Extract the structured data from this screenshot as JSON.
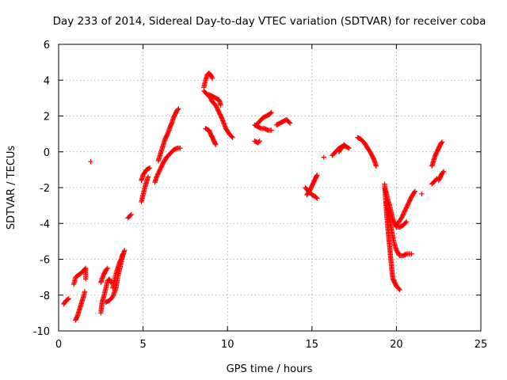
{
  "chart_data": {
    "type": "scatter",
    "title": "Day 233 of 2014, Sidereal Day-to-day VTEC variation (SDTVAR) for receiver coba",
    "xlabel": "GPS time / hours",
    "ylabel": "SDTVAR / TECUs",
    "xlim": [
      0,
      25
    ],
    "ylim": [
      -10,
      6
    ],
    "xticks": [
      0,
      5,
      10,
      15,
      20,
      25
    ],
    "yticks": [
      -10,
      -8,
      -6,
      -4,
      -2,
      0,
      2,
      4,
      6
    ],
    "grid": true,
    "marker": "+",
    "color": "#ff0000",
    "series": [
      {
        "name": "arc-1",
        "points": [
          [
            0.3,
            -8.5
          ],
          [
            0.45,
            -8.3
          ],
          [
            0.6,
            -8.2
          ]
        ]
      },
      {
        "name": "arc-2",
        "points": [
          [
            0.9,
            -7.4
          ],
          [
            1.0,
            -7.0
          ],
          [
            1.15,
            -6.9
          ],
          [
            1.3,
            -6.8
          ],
          [
            1.5,
            -6.6
          ],
          [
            1.6,
            -6.5
          ],
          [
            1.6,
            -7.1
          ]
        ]
      },
      {
        "name": "arc-3",
        "points": [
          [
            1.0,
            -9.4
          ],
          [
            1.1,
            -9.2
          ],
          [
            1.2,
            -8.9
          ],
          [
            1.3,
            -8.6
          ],
          [
            1.4,
            -8.3
          ],
          [
            1.5,
            -8.0
          ],
          [
            1.55,
            -7.8
          ]
        ]
      },
      {
        "name": "outlier-1",
        "points": [
          [
            1.9,
            -0.55
          ]
        ]
      },
      {
        "name": "arc-4",
        "points": [
          [
            2.5,
            -7.3
          ],
          [
            2.6,
            -7.0
          ],
          [
            2.7,
            -6.8
          ],
          [
            2.8,
            -6.6
          ],
          [
            2.9,
            -6.5
          ]
        ]
      },
      {
        "name": "arc-5",
        "points": [
          [
            2.5,
            -9.0
          ],
          [
            2.55,
            -8.6
          ],
          [
            2.6,
            -8.3
          ],
          [
            2.7,
            -8.0
          ],
          [
            2.8,
            -7.6
          ],
          [
            2.9,
            -7.2
          ],
          [
            3.0,
            -7.1
          ],
          [
            3.1,
            -7.3
          ]
        ]
      },
      {
        "name": "arc-6",
        "points": [
          [
            2.8,
            -8.4
          ],
          [
            3.0,
            -8.3
          ],
          [
            3.2,
            -8.1
          ],
          [
            3.4,
            -7.6
          ],
          [
            3.5,
            -7.0
          ],
          [
            3.6,
            -6.6
          ],
          [
            3.7,
            -6.2
          ],
          [
            3.8,
            -5.8
          ],
          [
            3.9,
            -5.5
          ]
        ]
      },
      {
        "name": "arc-7",
        "points": [
          [
            3.2,
            -7.6
          ],
          [
            3.3,
            -7.2
          ],
          [
            3.4,
            -6.8
          ],
          [
            3.5,
            -6.5
          ],
          [
            3.6,
            -6.2
          ],
          [
            3.7,
            -6.0
          ],
          [
            3.8,
            -5.7
          ]
        ]
      },
      {
        "name": "arc-8",
        "points": [
          [
            4.1,
            -3.7
          ],
          [
            4.2,
            -3.6
          ],
          [
            4.3,
            -3.5
          ]
        ]
      },
      {
        "name": "arc-9",
        "points": [
          [
            4.9,
            -2.8
          ],
          [
            5.0,
            -2.4
          ],
          [
            5.1,
            -2.0
          ],
          [
            5.2,
            -1.7
          ],
          [
            5.3,
            -1.4
          ]
        ]
      },
      {
        "name": "arc-10",
        "points": [
          [
            4.9,
            -1.6
          ],
          [
            5.0,
            -1.3
          ],
          [
            5.2,
            -1.0
          ],
          [
            5.4,
            -0.9
          ]
        ]
      },
      {
        "name": "arc-11",
        "points": [
          [
            5.7,
            -1.7
          ],
          [
            5.8,
            -1.4
          ],
          [
            6.0,
            -1.0
          ],
          [
            6.2,
            -0.6
          ],
          [
            6.4,
            -0.3
          ],
          [
            6.6,
            -0.1
          ],
          [
            6.8,
            0.1
          ],
          [
            7.0,
            0.2
          ],
          [
            7.2,
            0.2
          ]
        ]
      },
      {
        "name": "arc-12",
        "points": [
          [
            5.9,
            -0.5
          ],
          [
            6.0,
            -0.2
          ],
          [
            6.1,
            0.1
          ],
          [
            6.2,
            0.4
          ],
          [
            6.3,
            0.7
          ],
          [
            6.4,
            0.9
          ],
          [
            6.5,
            1.1
          ],
          [
            6.6,
            1.4
          ],
          [
            6.7,
            1.6
          ],
          [
            6.8,
            1.9
          ],
          [
            6.9,
            2.1
          ],
          [
            7.0,
            2.3
          ],
          [
            7.1,
            2.4
          ]
        ]
      },
      {
        "name": "arc-13",
        "points": [
          [
            8.6,
            3.6
          ],
          [
            8.7,
            4.0
          ],
          [
            8.8,
            4.3
          ],
          [
            8.9,
            4.4
          ],
          [
            9.0,
            4.3
          ],
          [
            9.1,
            4.1
          ]
        ]
      },
      {
        "name": "arc-14",
        "points": [
          [
            8.6,
            3.4
          ],
          [
            8.8,
            3.2
          ],
          [
            9.0,
            3.0
          ],
          [
            9.1,
            2.8
          ],
          [
            9.3,
            2.6
          ],
          [
            9.5,
            2.2
          ],
          [
            9.7,
            1.8
          ],
          [
            9.9,
            1.3
          ],
          [
            10.1,
            1.0
          ],
          [
            10.3,
            0.8
          ]
        ]
      },
      {
        "name": "arc-15",
        "points": [
          [
            8.9,
            3.2
          ],
          [
            9.1,
            3.1
          ],
          [
            9.3,
            3.0
          ],
          [
            9.5,
            2.9
          ],
          [
            9.6,
            2.6
          ]
        ]
      },
      {
        "name": "arc-16",
        "points": [
          [
            8.7,
            1.3
          ],
          [
            8.9,
            1.2
          ],
          [
            9.0,
            1.0
          ],
          [
            9.1,
            0.8
          ],
          [
            9.2,
            0.6
          ],
          [
            9.3,
            0.4
          ]
        ]
      },
      {
        "name": "arc-17",
        "points": [
          [
            11.6,
            1.5
          ],
          [
            11.8,
            1.4
          ],
          [
            12.0,
            1.3
          ],
          [
            12.2,
            1.3
          ],
          [
            12.4,
            1.2
          ],
          [
            12.6,
            1.2
          ]
        ]
      },
      {
        "name": "arc-18",
        "points": [
          [
            11.7,
            1.5
          ],
          [
            11.9,
            1.7
          ],
          [
            12.1,
            1.9
          ],
          [
            12.3,
            2.0
          ],
          [
            12.5,
            2.1
          ],
          [
            12.6,
            2.2
          ]
        ]
      },
      {
        "name": "arc-19",
        "points": [
          [
            11.6,
            0.6
          ],
          [
            11.8,
            0.5
          ],
          [
            11.9,
            0.6
          ]
        ]
      },
      {
        "name": "arc-20",
        "points": [
          [
            12.9,
            1.5
          ],
          [
            13.1,
            1.6
          ],
          [
            13.3,
            1.7
          ],
          [
            13.5,
            1.8
          ],
          [
            13.6,
            1.7
          ],
          [
            13.7,
            1.6
          ]
        ]
      },
      {
        "name": "arc-21",
        "points": [
          [
            14.6,
            -2.0
          ],
          [
            14.8,
            -2.2
          ],
          [
            15.0,
            -2.4
          ],
          [
            15.2,
            -2.5
          ],
          [
            15.3,
            -2.6
          ]
        ]
      },
      {
        "name": "arc-22",
        "points": [
          [
            14.7,
            -2.4
          ],
          [
            14.9,
            -2.1
          ],
          [
            15.0,
            -1.9
          ],
          [
            15.1,
            -1.7
          ],
          [
            15.2,
            -1.5
          ],
          [
            15.3,
            -1.3
          ]
        ]
      },
      {
        "name": "outlier-2",
        "points": [
          [
            15.7,
            -0.3
          ]
        ]
      },
      {
        "name": "arc-23",
        "points": [
          [
            16.2,
            -0.2
          ],
          [
            16.4,
            0.0
          ],
          [
            16.6,
            0.2
          ],
          [
            16.8,
            0.3
          ],
          [
            17.0,
            0.3
          ],
          [
            17.2,
            0.2
          ]
        ]
      },
      {
        "name": "arc-24",
        "points": [
          [
            16.6,
            0.0
          ],
          [
            16.8,
            0.3
          ],
          [
            16.9,
            0.4
          ],
          [
            17.0,
            0.3
          ]
        ]
      },
      {
        "name": "arc-25",
        "points": [
          [
            17.7,
            0.8
          ],
          [
            17.9,
            0.7
          ],
          [
            18.1,
            0.5
          ],
          [
            18.3,
            0.2
          ],
          [
            18.5,
            -0.1
          ],
          [
            18.7,
            -0.5
          ],
          [
            18.8,
            -0.8
          ]
        ]
      },
      {
        "name": "arc-26",
        "points": [
          [
            19.3,
            -1.8
          ],
          [
            19.35,
            -2.5
          ],
          [
            19.4,
            -3.2
          ],
          [
            19.45,
            -3.8
          ],
          [
            19.5,
            -4.3
          ],
          [
            19.55,
            -4.8
          ],
          [
            19.6,
            -5.3
          ],
          [
            19.65,
            -5.8
          ],
          [
            19.7,
            -6.3
          ],
          [
            19.75,
            -6.8
          ],
          [
            19.8,
            -7.1
          ],
          [
            19.9,
            -7.3
          ],
          [
            20.0,
            -7.5
          ],
          [
            20.2,
            -7.7
          ]
        ]
      },
      {
        "name": "arc-27",
        "points": [
          [
            19.3,
            -2.0
          ],
          [
            19.4,
            -2.3
          ],
          [
            19.5,
            -2.7
          ],
          [
            19.6,
            -3.0
          ],
          [
            19.7,
            -3.4
          ],
          [
            19.8,
            -3.8
          ],
          [
            19.9,
            -4.0
          ],
          [
            20.0,
            -4.2
          ],
          [
            20.2,
            -4.2
          ],
          [
            20.4,
            -4.1
          ],
          [
            20.6,
            -3.9
          ]
        ]
      },
      {
        "name": "arc-28",
        "points": [
          [
            19.4,
            -2.8
          ],
          [
            19.5,
            -3.3
          ],
          [
            19.6,
            -3.8
          ],
          [
            19.7,
            -4.3
          ],
          [
            19.8,
            -4.8
          ],
          [
            19.9,
            -5.2
          ],
          [
            20.0,
            -5.5
          ],
          [
            20.2,
            -5.8
          ],
          [
            20.4,
            -5.8
          ],
          [
            20.6,
            -5.7
          ],
          [
            20.9,
            -5.7
          ]
        ]
      },
      {
        "name": "arc-29",
        "points": [
          [
            20.0,
            -4.1
          ],
          [
            20.3,
            -3.7
          ],
          [
            20.5,
            -3.3
          ],
          [
            20.7,
            -2.9
          ],
          [
            20.9,
            -2.5
          ],
          [
            21.1,
            -2.2
          ]
        ]
      },
      {
        "name": "outlier-3",
        "points": [
          [
            21.5,
            -2.35
          ]
        ]
      },
      {
        "name": "arc-30",
        "points": [
          [
            22.1,
            -0.8
          ],
          [
            22.2,
            -0.5
          ],
          [
            22.3,
            -0.2
          ],
          [
            22.4,
            0.0
          ],
          [
            22.5,
            0.2
          ],
          [
            22.6,
            0.4
          ],
          [
            22.7,
            0.55
          ]
        ]
      },
      {
        "name": "arc-31",
        "points": [
          [
            22.1,
            -1.8
          ],
          [
            22.2,
            -1.7
          ],
          [
            22.3,
            -1.6
          ],
          [
            22.4,
            -1.5
          ]
        ]
      },
      {
        "name": "arc-32",
        "points": [
          [
            22.5,
            -1.6
          ],
          [
            22.6,
            -1.4
          ],
          [
            22.7,
            -1.2
          ],
          [
            22.8,
            -1.1
          ]
        ]
      }
    ]
  }
}
